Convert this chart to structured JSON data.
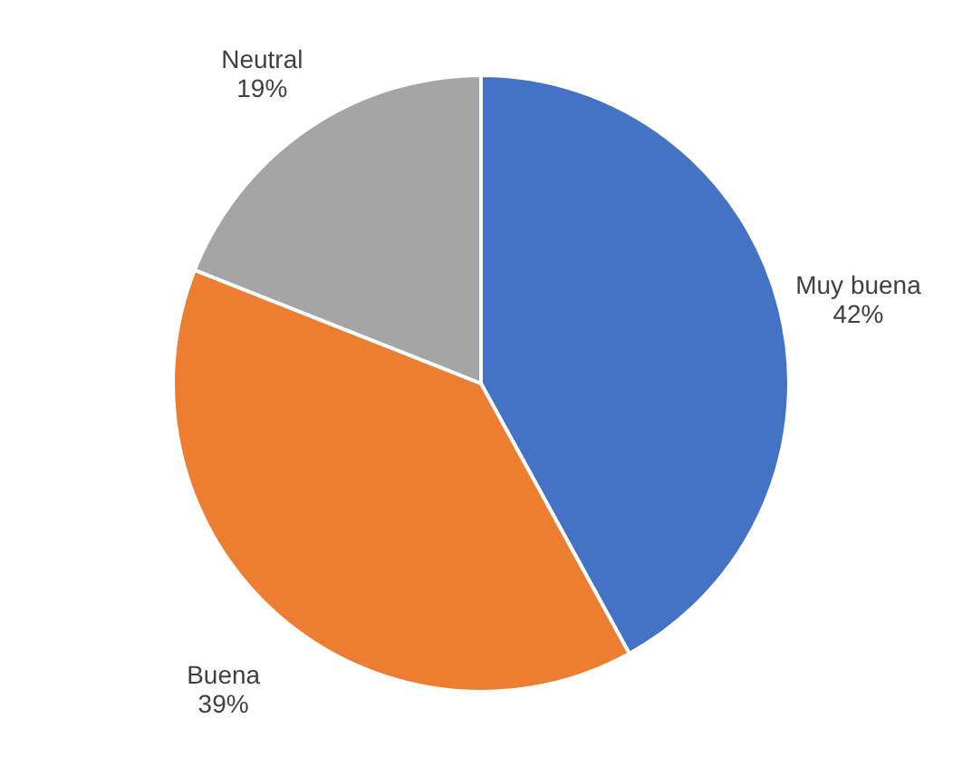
{
  "chart_data": {
    "type": "pie",
    "categories": [
      "Muy buena",
      "Buena",
      "Neutral"
    ],
    "values": [
      42,
      39,
      19
    ],
    "value_labels": [
      "42%",
      "39%",
      "19%"
    ],
    "colors": [
      "#4472c4",
      "#ed7d31",
      "#a5a5a5"
    ]
  }
}
